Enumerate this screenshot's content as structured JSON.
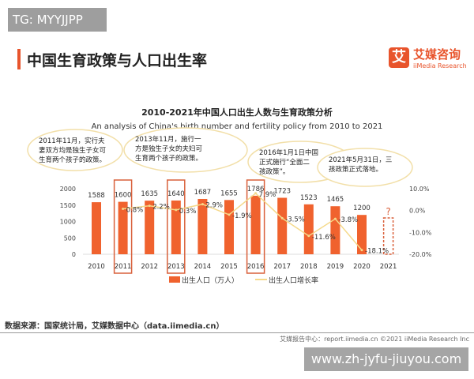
{
  "watermark_tag": "TG: MYYJJPP",
  "page_title": "中国生育政策与人口出生率",
  "logo": {
    "mark": "艾",
    "cn": "艾媒咨询",
    "en": "iiMedia Research"
  },
  "source": "数据来源：国家统计局，艾媒数据中心（data.iimedia.cn）",
  "footer": "艾媒报告中心：report.iimedia.cn   ©2021  iiMedia Research  Inc",
  "watermark_url": "www.zh-jyfu-jiuyou.com",
  "colors": {
    "bar": "#f0622e",
    "line": "#f5d98a",
    "box": "#d9603b"
  },
  "chart_data": {
    "type": "bar",
    "title": "2010-2021年中国人口出生人数与生育政策分析",
    "subtitle": "An analysis of China's birth number and fertility policy from 2010 to 2021",
    "categories": [
      "2010",
      "2011",
      "2012",
      "2013",
      "2014",
      "2015",
      "2016",
      "2017",
      "2018",
      "2019",
      "2020",
      "2021"
    ],
    "series": [
      {
        "name": "出生人口（万人）",
        "type": "bar",
        "values": [
          1588,
          1600,
          1635,
          1640,
          1687,
          1655,
          1786,
          1723,
          1523,
          1465,
          1200,
          null
        ],
        "labels": [
          "1588",
          "1600",
          "1635",
          "1640",
          "1687",
          "1655",
          "1786",
          "1723",
          "1523",
          "1465",
          "1200",
          "?"
        ]
      },
      {
        "name": "出生人口增长率",
        "type": "line",
        "values": [
          null,
          0.8,
          2.2,
          0.3,
          2.9,
          -1.9,
          7.9,
          -3.5,
          -11.6,
          -3.8,
          -18.1,
          null
        ],
        "labels": [
          "",
          "0.8%",
          "2.2%",
          "0.3%",
          "2.9%",
          "-1.9%",
          "7.9%",
          "-3.5%",
          "-11.6%",
          "-3.8%",
          "-18.1%",
          ""
        ]
      }
    ],
    "y_left": {
      "ticks": [
        "2000",
        "1500",
        "1000",
        "500",
        "0"
      ],
      "range": [
        0,
        2000
      ]
    },
    "y_right": {
      "ticks": [
        "10.0%",
        "0.0%",
        "-10.0%",
        "-20.0%"
      ],
      "range": [
        -20,
        10
      ]
    },
    "highlighted": [
      "2011",
      "2013",
      "2016",
      "2021"
    ],
    "callouts": [
      {
        "year": "2011",
        "lines": [
          "2011年11月，实行夫",
          "妻双方均是独生子女可",
          "生育两个孩子的政策。"
        ]
      },
      {
        "year": "2013",
        "lines": [
          "2013年11月，施行一",
          "方是独生子女的夫妇可",
          "生育两个孩子的政策。"
        ]
      },
      {
        "year": "2016",
        "lines": [
          "2016年1月1日中国",
          "正式施行“全面二",
          "孩政策”。"
        ]
      },
      {
        "year": "2021",
        "lines": [
          "2021年5月31日，三",
          "孩政策正式落地。"
        ]
      }
    ],
    "legend": "bottom"
  }
}
